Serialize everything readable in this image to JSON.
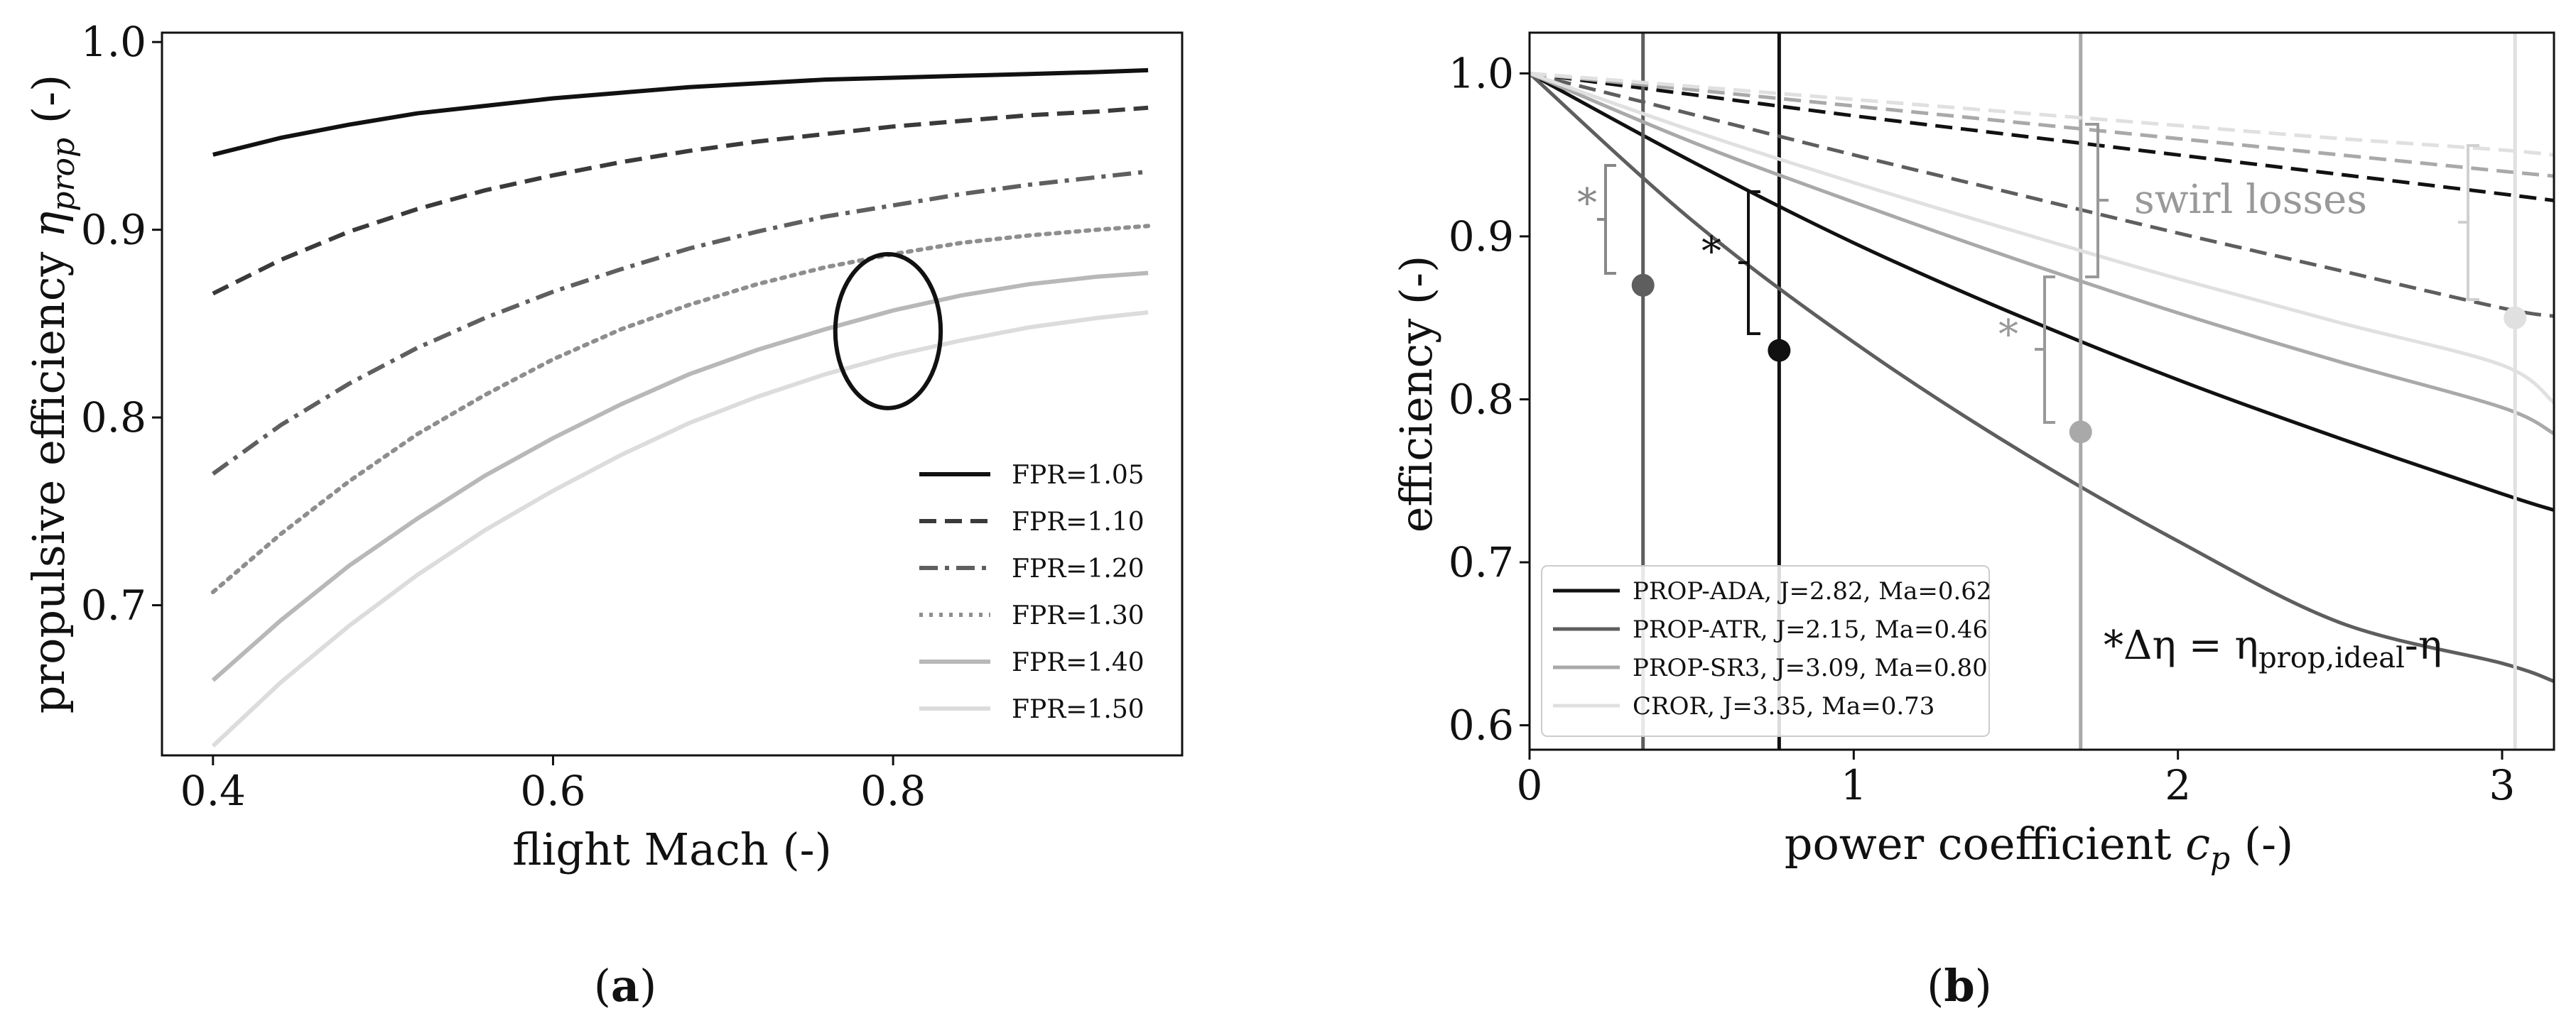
{
  "chart_data": [
    {
      "type": "line",
      "panel_label": "a",
      "xlabel": "flight Mach (-)",
      "ylabel": "propulsive efficiency ηprop (-)",
      "xlim": [
        0.37,
        0.97
      ],
      "ylim": [
        0.62,
        1.005
      ],
      "xticks": [
        "0.4",
        "0.6",
        "0.8"
      ],
      "xtick_values": [
        0.4,
        0.6,
        0.8
      ],
      "yticks": [
        "0.7",
        "0.8",
        "0.9",
        "1.0"
      ],
      "ytick_values": [
        0.7,
        0.8,
        0.9,
        1.0
      ],
      "grid": false,
      "legend_position": "lower-right",
      "x": [
        0.4,
        0.44,
        0.48,
        0.52,
        0.56,
        0.6,
        0.64,
        0.68,
        0.72,
        0.76,
        0.8,
        0.84,
        0.88,
        0.92,
        0.95
      ],
      "series": [
        {
          "name": "FPR=1.05",
          "color": "#111111",
          "dash": "solid",
          "values": [
            0.94,
            0.949,
            0.956,
            0.962,
            0.966,
            0.97,
            0.973,
            0.976,
            0.978,
            0.98,
            0.981,
            0.982,
            0.983,
            0.984,
            0.985
          ]
        },
        {
          "name": "FPR=1.10",
          "color": "#3a3a3a",
          "dash": "dashed",
          "values": [
            0.866,
            0.884,
            0.899,
            0.911,
            0.921,
            0.929,
            0.936,
            0.942,
            0.947,
            0.951,
            0.955,
            0.958,
            0.961,
            0.963,
            0.965
          ]
        },
        {
          "name": "FPR=1.20",
          "color": "#5f5f5f",
          "dash": "dashdot",
          "values": [
            0.77,
            0.796,
            0.818,
            0.837,
            0.853,
            0.867,
            0.879,
            0.89,
            0.899,
            0.907,
            0.913,
            0.919,
            0.924,
            0.928,
            0.931
          ]
        },
        {
          "name": "FPR=1.30",
          "color": "#8e8e8e",
          "dash": "dotted",
          "values": [
            0.707,
            0.738,
            0.766,
            0.791,
            0.812,
            0.831,
            0.847,
            0.86,
            0.871,
            0.88,
            0.887,
            0.893,
            0.897,
            0.9,
            0.902
          ]
        },
        {
          "name": "FPR=1.40",
          "color": "#b8b8b8",
          "dash": "solid",
          "values": [
            0.66,
            0.692,
            0.721,
            0.746,
            0.769,
            0.789,
            0.807,
            0.823,
            0.836,
            0.847,
            0.857,
            0.865,
            0.871,
            0.875,
            0.877
          ]
        },
        {
          "name": "FPR=1.50",
          "color": "#dcdcdc",
          "dash": "solid",
          "values": [
            0.625,
            0.659,
            0.689,
            0.716,
            0.74,
            0.761,
            0.78,
            0.797,
            0.811,
            0.823,
            0.833,
            0.841,
            0.848,
            0.853,
            0.856
          ]
        }
      ],
      "annotations": [
        {
          "shape": "ellipse",
          "center": [
            0.797,
            0.846
          ],
          "rx": 0.031,
          "ry": 0.041
        }
      ]
    },
    {
      "type": "line",
      "panel_label": "b",
      "xlabel": "power coefficient cp (-)",
      "ylabel": "efficiency (-)",
      "xlim": [
        0,
        3.16
      ],
      "ylim": [
        0.585,
        1.025
      ],
      "xticks": [
        "0",
        "1",
        "2",
        "3"
      ],
      "xtick_values": [
        0,
        1,
        2,
        3
      ],
      "yticks": [
        "0.6",
        "0.7",
        "0.8",
        "0.9",
        "1.0"
      ],
      "ytick_values": [
        0.6,
        0.7,
        0.8,
        0.9,
        1.0
      ],
      "grid": false,
      "legend_position": "lower-left",
      "x": [
        0,
        0.5,
        1.0,
        1.5,
        2.0,
        2.5,
        3.0,
        3.16
      ],
      "series": [
        {
          "name": "PROP-ADA, J=2.82, Ma=0.62",
          "color": "#111111",
          "total": [
            1.0,
            0.946,
            0.896,
            0.852,
            0.812,
            0.776,
            0.742,
            0.732
          ],
          "ideal": [
            1.0,
            0.987,
            0.974,
            0.962,
            0.95,
            0.938,
            0.926,
            0.922
          ],
          "operating_point": {
            "cp": 0.77,
            "eta": 0.83
          }
        },
        {
          "name": "PROP-ATR, J=2.15, Ma=0.46",
          "color": "#5e5e5e",
          "total": [
            1.0,
            0.91,
            0.835,
            0.77,
            0.713,
            0.663,
            0.638,
            0.627
          ],
          "ideal": [
            1.0,
            0.975,
            0.95,
            0.926,
            0.902,
            0.879,
            0.856,
            0.851
          ],
          "operating_point": {
            "cp": 0.35,
            "eta": 0.87
          }
        },
        {
          "name": "PROP-SR3, J=3.09, Ma=0.80",
          "color": "#a9a9a9",
          "total": [
            1.0,
            0.958,
            0.921,
            0.886,
            0.853,
            0.823,
            0.795,
            0.779
          ],
          "ideal": [
            1.0,
            0.99,
            0.98,
            0.97,
            0.96,
            0.95,
            0.94,
            0.937
          ],
          "operating_point": {
            "cp": 1.7,
            "eta": 0.78
          }
        },
        {
          "name": "CROR, J=3.35, Ma=0.73",
          "color": "#e0e0e0",
          "total": [
            1.0,
            0.965,
            0.933,
            0.903,
            0.874,
            0.847,
            0.821,
            0.798
          ],
          "ideal": [
            1.0,
            0.992,
            0.984,
            0.976,
            0.968,
            0.96,
            0.953,
            0.95
          ],
          "operating_point": {
            "cp": 3.04,
            "eta": 0.85
          }
        }
      ],
      "annotations": [
        {
          "text": "swirl losses",
          "color": "#999999"
        },
        {
          "text": "*",
          "color": "#888888"
        },
        {
          "text": "*",
          "color": "#111111"
        },
        {
          "text": "*",
          "color": "#999999"
        },
        {
          "text": "*Δη = ηprop,ideal-η",
          "color": "#111111"
        }
      ]
    }
  ]
}
